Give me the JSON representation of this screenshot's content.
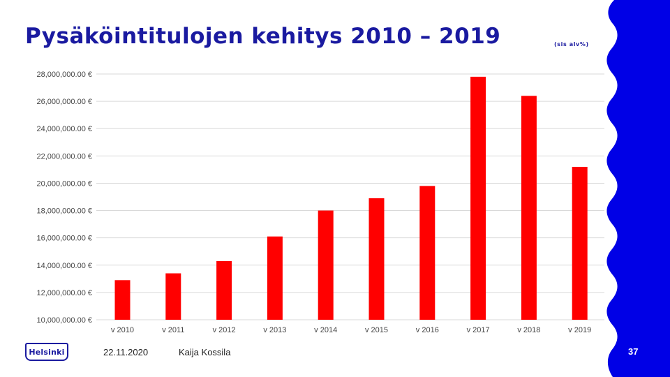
{
  "slide": {
    "title": "Pysäköintitulojen kehitys 2010 – 2019",
    "subtitle": "(sis alv%)",
    "date": "22.11.2020",
    "author": "Kaija Kossila",
    "logo_text": "Helsinki",
    "page_number": "37",
    "colors": {
      "brand_blue": "#1a1aa0",
      "bar_red": "#ff0000",
      "grid": "#d9d9d9"
    }
  },
  "chart_data": {
    "type": "bar",
    "title": "Pysäköintitulojen kehitys 2010 – 2019",
    "xlabel": "",
    "ylabel": "",
    "categories": [
      "v 2010",
      "v 2011",
      "v 2012",
      "v 2013",
      "v 2014",
      "v 2015",
      "v 2016",
      "v 2017",
      "v 2018",
      "v 2019"
    ],
    "values": [
      12900000,
      13400000,
      14300000,
      16100000,
      18000000,
      18900000,
      19800000,
      27800000,
      26400000,
      21200000
    ],
    "ylim": [
      10000000,
      28000000
    ],
    "yticks": [
      10000000,
      12000000,
      14000000,
      16000000,
      18000000,
      20000000,
      22000000,
      24000000,
      26000000,
      28000000
    ],
    "ytick_labels": [
      "10,000,000.00 €",
      "12,000,000.00 €",
      "14,000,000.00 €",
      "16,000,000.00 €",
      "18,000,000.00 €",
      "20,000,000.00 €",
      "22,000,000.00 €",
      "24,000,000.00 €",
      "26,000,000.00 €",
      "28,000,000.00 €"
    ],
    "grid": true,
    "legend": "none",
    "bar_color": "#ff0000"
  }
}
